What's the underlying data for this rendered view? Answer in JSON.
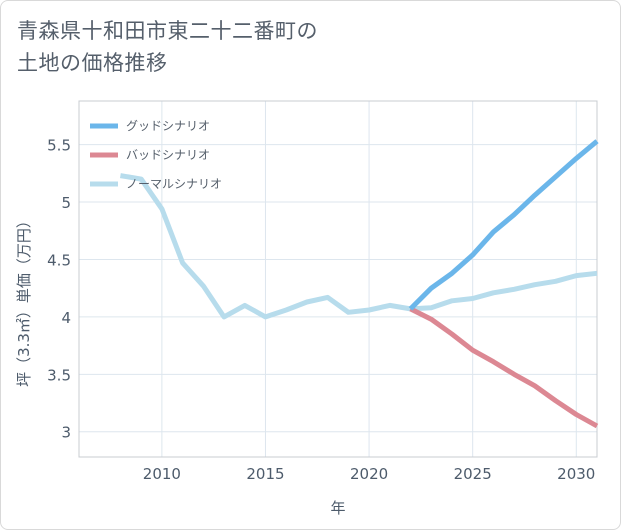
{
  "title_lines": [
    "青森県十和田市東二十二番町の",
    "土地の価格推移"
  ],
  "chart_data": {
    "type": "line",
    "xlabel": "年",
    "ylabel": "坪（3.3㎡）単価（万円）",
    "xlim": [
      2006,
      2031
    ],
    "ylim": [
      2.78,
      5.88
    ],
    "xticks": [
      2010,
      2015,
      2020,
      2025,
      2030
    ],
    "yticks": [
      3,
      3.5,
      4,
      4.5,
      5,
      5.5
    ],
    "ytick_labels": [
      "3",
      "3.5",
      "4",
      "4.5",
      "5",
      "5.5"
    ],
    "grid": true,
    "legend_position": "top-left",
    "series": [
      {
        "name": "グッドシナリオ",
        "color": "#6bb6ea",
        "x": [
          2022,
          2023,
          2024,
          2025,
          2026,
          2027,
          2028,
          2029,
          2030,
          2031
        ],
        "y": [
          4.07,
          4.25,
          4.38,
          4.54,
          4.74,
          4.89,
          5.06,
          5.22,
          5.38,
          5.53
        ]
      },
      {
        "name": "バッドシナリオ",
        "color": "#dc8893",
        "x": [
          2022,
          2023,
          2024,
          2025,
          2026,
          2027,
          2028,
          2029,
          2030,
          2031
        ],
        "y": [
          4.07,
          3.98,
          3.85,
          3.71,
          3.61,
          3.5,
          3.4,
          3.27,
          3.15,
          3.05
        ]
      },
      {
        "name": "ノーマルシナリオ",
        "color": "#b7dcec",
        "x": [
          2008,
          2009,
          2010,
          2011,
          2012,
          2013,
          2014,
          2015,
          2016,
          2017,
          2018,
          2019,
          2020,
          2021,
          2022,
          2023,
          2024,
          2025,
          2026,
          2027,
          2028,
          2029,
          2030,
          2031
        ],
        "y": [
          5.23,
          5.2,
          4.94,
          4.47,
          4.27,
          4.0,
          4.1,
          4.0,
          4.06,
          4.13,
          4.17,
          4.04,
          4.06,
          4.1,
          4.07,
          4.08,
          4.14,
          4.16,
          4.21,
          4.24,
          4.28,
          4.31,
          4.36,
          4.38
        ]
      }
    ]
  }
}
